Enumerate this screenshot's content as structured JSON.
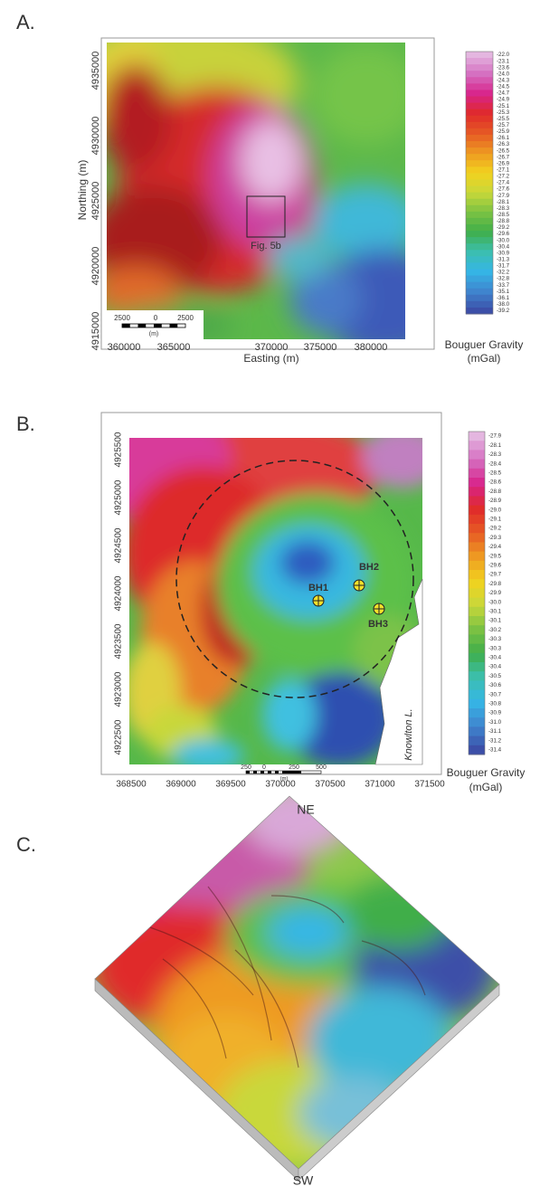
{
  "panel_a": {
    "label": "A.",
    "y_axis_title": "Northing (m)",
    "x_axis_title": "Easting (m)",
    "y_ticks": [
      4935000,
      4930000,
      4925000,
      4920000,
      4915000
    ],
    "x_ticks": [
      360000,
      365000,
      370000,
      375000,
      380000
    ],
    "colorbar_labels": [
      "-22.0",
      "-23.1",
      "-23.6",
      "-24.0",
      "-24.3",
      "-24.5",
      "-24.7",
      "-24.9",
      "-25.1",
      "-25.3",
      "-25.5",
      "-25.7",
      "-25.9",
      "-26.1",
      "-26.3",
      "-26.5",
      "-26.7",
      "-26.9",
      "-27.1",
      "-27.2",
      "-27.4",
      "-27.6",
      "-27.9",
      "-28.1",
      "-28.3",
      "-28.5",
      "-28.8",
      "-29.2",
      "-29.6",
      "-30.0",
      "-30.4",
      "-30.9",
      "-31.3",
      "-31.7",
      "-32.2",
      "-32.8",
      "-33.7",
      "-35.1",
      "-36.1",
      "-38.0",
      "-39.2"
    ],
    "colorbar_title": [
      "Bouguer Gravity",
      "(mGal)"
    ],
    "box_label": "Fig. 5b",
    "scale_bar": [
      "2500",
      "0",
      "2500",
      "(m)"
    ]
  },
  "panel_b": {
    "label": "B.",
    "y_ticks": [
      4925500,
      4925000,
      4924500,
      4924000,
      4923500,
      4923000,
      4922500
    ],
    "x_ticks": [
      368500,
      369000,
      369500,
      370000,
      370500,
      371000,
      371500
    ],
    "colorbar_labels": [
      "-27.9",
      "-28.1",
      "-28.3",
      "-28.4",
      "-28.5",
      "-28.6",
      "-28.8",
      "-28.9",
      "-29.0",
      "-29.1",
      "-29.2",
      "-29.3",
      "-29.4",
      "-29.5",
      "-29.6",
      "-29.7",
      "-29.8",
      "-29.9",
      "-30.0",
      "-30.1",
      "-30.1",
      "-30.2",
      "-30.3",
      "-30.3",
      "-30.4",
      "-30.4",
      "-30.5",
      "-30.6",
      "-30.7",
      "-30.8",
      "-30.9",
      "-31.0",
      "-31.1",
      "-31.2",
      "-31.4"
    ],
    "colorbar_title": [
      "Bouguer Gravity",
      "(mGal)"
    ],
    "boreholes": [
      "BH1",
      "BH2",
      "BH3"
    ],
    "lake_label": "Knowlton L.",
    "scale_bar": [
      "250",
      "0",
      "250",
      "500",
      "(m)"
    ]
  },
  "panel_c": {
    "label": "C.",
    "top_direction": "NE",
    "bottom_direction": "SW"
  }
}
